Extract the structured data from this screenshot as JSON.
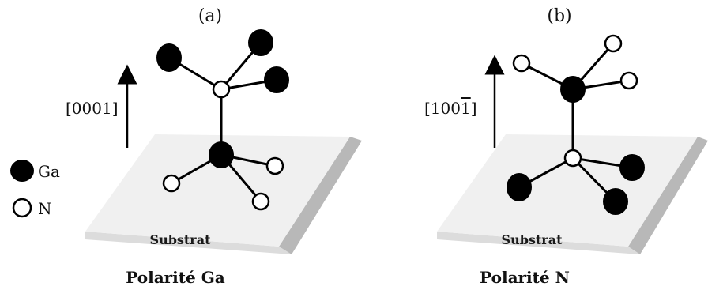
{
  "legend": {
    "ga_label": "Ga",
    "n_label": "N"
  },
  "panels": [
    {
      "id": "a",
      "label": "(a)",
      "direction_label": "[0001]",
      "substrate_label": "Substrat",
      "caption": "Polarité Ga"
    },
    {
      "id": "b",
      "label": "(b)",
      "direction_label": "[100",
      "direction_label_bar_digit": "1",
      "direction_label_close": "]",
      "substrate_label": "Substrat",
      "caption": "Polarité N"
    }
  ],
  "colors": {
    "ga_atom": "#000000",
    "n_atom": "#ffffff",
    "substrate_top": "#f0f0f0",
    "substrate_side": "#b8b8b8",
    "substrate_front": "#dcdcdc"
  }
}
